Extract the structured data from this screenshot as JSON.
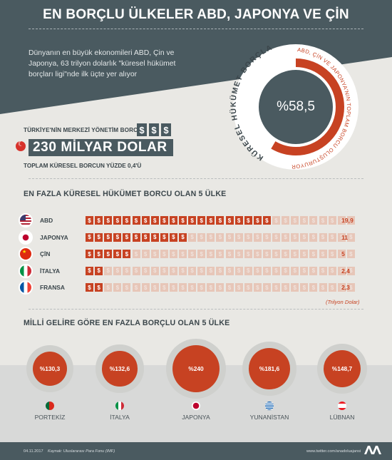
{
  "header": {
    "title": "EN BORÇLU ÜLKELER ABD, JAPONYA VE ÇİN",
    "intro": "Dünyanın en büyük ekonomileri ABD, Çin ve Japonya, 63 trilyon dolarlık \"küresel hükümet borçları ligi\"nde ilk üçte yer alıyor"
  },
  "ring": {
    "percent_label": "%58,5",
    "percent_value": 58.5,
    "outer_text": "ABD, ÇİN VE JAPONYA'NIN TOPLAM BORCU OLUŞTURUYOR",
    "inner_text": "KÜRESEL HÜKÜMET BORÇLARI",
    "accent": "#c74222"
  },
  "turkey": {
    "top_label": "TÜRKİYE'NİN MERKEZİ YÖNETİM BORCU",
    "dollar_boxes": [
      "$",
      "$",
      "$"
    ],
    "amount": "230 MİLYAR DOLAR",
    "bottom_label": "TOPLAM KÜRESEL BORCUN YÜZDE 0,4'Ü",
    "flag_icon": "turkey-flag-icon"
  },
  "debt_chart": {
    "title": "EN FAZLA KÜRESEL HÜKÜMET BORCU OLAN 5 ÜLKE",
    "unit": "(Trilyon Dolar)",
    "coin_glyph": "$",
    "coin_total": 29
  },
  "chart_data": [
    {
      "type": "bar",
      "title": "EN FAZLA KÜRESEL HÜKÜMET BORCU OLAN 5 ÜLKE",
      "unit": "(Trilyon Dolar)",
      "categories": [
        "ABD",
        "JAPONYA",
        "ÇİN",
        "İTALYA",
        "FRANSA"
      ],
      "values": [
        19.9,
        11,
        5,
        2.4,
        2.3
      ],
      "value_labels": [
        "19,9",
        "11",
        "5",
        "2,4",
        "2,3"
      ],
      "flag_icons": [
        "usa-flag-icon",
        "japan-flag-icon",
        "china-flag-icon",
        "italy-flag-icon",
        "france-flag-icon"
      ],
      "xlim": [
        0,
        29
      ],
      "grid": false
    },
    {
      "type": "bubble",
      "title": "MİLLİ GELİRE GÖRE EN FAZLA BORÇLU OLAN 5 ÜLKE",
      "categories": [
        "PORTEKİZ",
        "İTALYA",
        "JAPONYA",
        "YUNANİSTAN",
        "LÜBNAN"
      ],
      "values": [
        130.3,
        132.6,
        240,
        181.6,
        148.7
      ],
      "value_labels": [
        "%130,3",
        "%132,6",
        "%240",
        "%181,6",
        "%148,7"
      ],
      "flag_icons": [
        "portugal-flag-icon",
        "italy-flag-icon",
        "japan-flag-icon",
        "greece-flag-icon",
        "lebanon-flag-icon"
      ]
    }
  ],
  "gdp_chart": {
    "title": "MİLLİ GELİRE GÖRE EN FAZLA BORÇLU OLAN 5 ÜLKE"
  },
  "footer": {
    "date": "04.11.2017",
    "source": "Kaynak: Uluslararası Para Fonu (IMF)",
    "twitter": "www.twitter.com/anadoluajansi",
    "logo_icon": "aa-logo-icon"
  },
  "colors": {
    "slate": "#4a5a60",
    "accent": "#c74222",
    "accent_light": "#e7c6b8",
    "background": "#e9e8e4"
  }
}
